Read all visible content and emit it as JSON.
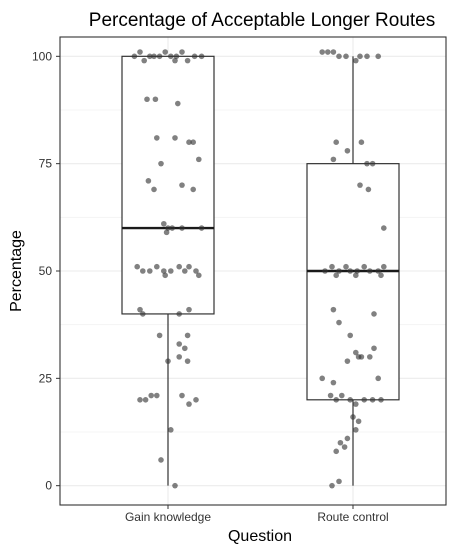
{
  "chart_data": {
    "type": "box",
    "title": "Percentage of Acceptable Longer Routes",
    "xlabel": "Question",
    "ylabel": "Percentage",
    "categories": [
      "Gain knowledge",
      "Route control"
    ],
    "ylim": [
      -4.5,
      104.5
    ],
    "yticks": [
      0,
      25,
      50,
      75,
      100
    ],
    "grid": true,
    "colors": {
      "point": "#333333",
      "box": "#333333",
      "grid": "#ebebeb",
      "panel_border": "#333333"
    },
    "boxes": [
      {
        "category": "Gain knowledge",
        "min": 0,
        "q1": 40,
        "median": 60,
        "q3": 100,
        "max": 100
      },
      {
        "category": "Route control",
        "min": 0,
        "q1": 20,
        "median": 50,
        "q3": 75,
        "max": 100
      }
    ],
    "points": {
      "Gain knowledge": [
        {
          "j": -0.24,
          "v": 100
        },
        {
          "j": -0.2,
          "v": 101
        },
        {
          "j": -0.17,
          "v": 99
        },
        {
          "j": -0.13,
          "v": 100
        },
        {
          "j": -0.1,
          "v": 100
        },
        {
          "j": -0.06,
          "v": 100
        },
        {
          "j": -0.02,
          "v": 101
        },
        {
          "j": 0.02,
          "v": 100
        },
        {
          "j": 0.06,
          "v": 100
        },
        {
          "j": 0.1,
          "v": 101
        },
        {
          "j": 0.14,
          "v": 99
        },
        {
          "j": 0.19,
          "v": 100
        },
        {
          "j": 0.24,
          "v": 100
        },
        {
          "j": 0.05,
          "v": 99
        },
        {
          "j": -0.15,
          "v": 90
        },
        {
          "j": -0.09,
          "v": 90
        },
        {
          "j": 0.07,
          "v": 89
        },
        {
          "j": 0.05,
          "v": 81
        },
        {
          "j": 0.18,
          "v": 80
        },
        {
          "j": 0.15,
          "v": 80
        },
        {
          "j": -0.08,
          "v": 81
        },
        {
          "j": 0.22,
          "v": 76
        },
        {
          "j": -0.05,
          "v": 75
        },
        {
          "j": -0.14,
          "v": 71
        },
        {
          "j": -0.1,
          "v": 69
        },
        {
          "j": 0.1,
          "v": 70
        },
        {
          "j": 0.18,
          "v": 69
        },
        {
          "j": -0.03,
          "v": 61
        },
        {
          "j": 0.0,
          "v": 60
        },
        {
          "j": 0.03,
          "v": 60
        },
        {
          "j": 0.1,
          "v": 60
        },
        {
          "j": 0.24,
          "v": 60
        },
        {
          "j": -0.01,
          "v": 59
        },
        {
          "j": -0.22,
          "v": 51
        },
        {
          "j": -0.18,
          "v": 50
        },
        {
          "j": -0.13,
          "v": 50
        },
        {
          "j": -0.08,
          "v": 51
        },
        {
          "j": -0.03,
          "v": 50
        },
        {
          "j": 0.02,
          "v": 50
        },
        {
          "j": 0.08,
          "v": 51
        },
        {
          "j": 0.12,
          "v": 50
        },
        {
          "j": 0.2,
          "v": 50
        },
        {
          "j": -0.02,
          "v": 49
        },
        {
          "j": 0.15,
          "v": 51
        },
        {
          "j": 0.22,
          "v": 49
        },
        {
          "j": -0.2,
          "v": 41
        },
        {
          "j": -0.18,
          "v": 40
        },
        {
          "j": 0.08,
          "v": 40
        },
        {
          "j": 0.15,
          "v": 41
        },
        {
          "j": -0.06,
          "v": 35
        },
        {
          "j": 0.14,
          "v": 35
        },
        {
          "j": 0.08,
          "v": 33
        },
        {
          "j": 0.12,
          "v": 32
        },
        {
          "j": 0.08,
          "v": 30
        },
        {
          "j": 0.14,
          "v": 29
        },
        {
          "j": 0.0,
          "v": 29
        },
        {
          "j": -0.12,
          "v": 21
        },
        {
          "j": -0.08,
          "v": 21
        },
        {
          "j": 0.1,
          "v": 21
        },
        {
          "j": -0.16,
          "v": 20
        },
        {
          "j": -0.2,
          "v": 20
        },
        {
          "j": 0.15,
          "v": 19
        },
        {
          "j": 0.2,
          "v": 20
        },
        {
          "j": 0.02,
          "v": 13
        },
        {
          "j": -0.05,
          "v": 6
        },
        {
          "j": 0.05,
          "v": 0
        }
      ],
      "Route control": [
        {
          "j": -0.22,
          "v": 101
        },
        {
          "j": -0.18,
          "v": 101
        },
        {
          "j": -0.14,
          "v": 101
        },
        {
          "j": -0.1,
          "v": 100
        },
        {
          "j": -0.05,
          "v": 100
        },
        {
          "j": 0.05,
          "v": 100
        },
        {
          "j": 0.1,
          "v": 100
        },
        {
          "j": 0.18,
          "v": 100
        },
        {
          "j": 0.02,
          "v": 99
        },
        {
          "j": -0.12,
          "v": 80
        },
        {
          "j": 0.06,
          "v": 80
        },
        {
          "j": -0.04,
          "v": 78
        },
        {
          "j": -0.14,
          "v": 76
        },
        {
          "j": 0.14,
          "v": 75
        },
        {
          "j": 0.1,
          "v": 75
        },
        {
          "j": 0.05,
          "v": 70
        },
        {
          "j": 0.11,
          "v": 69
        },
        {
          "j": 0.22,
          "v": 60
        },
        {
          "j": -0.2,
          "v": 50
        },
        {
          "j": -0.15,
          "v": 51
        },
        {
          "j": -0.1,
          "v": 50
        },
        {
          "j": -0.05,
          "v": 51
        },
        {
          "j": -0.02,
          "v": 50
        },
        {
          "j": 0.03,
          "v": 50
        },
        {
          "j": 0.08,
          "v": 51
        },
        {
          "j": 0.12,
          "v": 50
        },
        {
          "j": 0.18,
          "v": 50
        },
        {
          "j": 0.22,
          "v": 51
        },
        {
          "j": -0.12,
          "v": 49
        },
        {
          "j": 0.02,
          "v": 49
        },
        {
          "j": 0.2,
          "v": 49
        },
        {
          "j": -0.14,
          "v": 41
        },
        {
          "j": 0.15,
          "v": 40
        },
        {
          "j": -0.1,
          "v": 38
        },
        {
          "j": -0.02,
          "v": 35
        },
        {
          "j": 0.15,
          "v": 32
        },
        {
          "j": 0.02,
          "v": 31
        },
        {
          "j": 0.06,
          "v": 30
        },
        {
          "j": 0.12,
          "v": 30
        },
        {
          "j": -0.04,
          "v": 29
        },
        {
          "j": 0.04,
          "v": 30
        },
        {
          "j": -0.22,
          "v": 25
        },
        {
          "j": 0.18,
          "v": 25
        },
        {
          "j": -0.14,
          "v": 24
        },
        {
          "j": -0.16,
          "v": 21
        },
        {
          "j": -0.12,
          "v": 20
        },
        {
          "j": -0.08,
          "v": 21
        },
        {
          "j": -0.02,
          "v": 20
        },
        {
          "j": 0.02,
          "v": 19
        },
        {
          "j": 0.08,
          "v": 20
        },
        {
          "j": 0.14,
          "v": 20
        },
        {
          "j": 0.2,
          "v": 20
        },
        {
          "j": 0.0,
          "v": 16
        },
        {
          "j": 0.04,
          "v": 15
        },
        {
          "j": 0.02,
          "v": 13
        },
        {
          "j": -0.04,
          "v": 11
        },
        {
          "j": -0.09,
          "v": 10
        },
        {
          "j": -0.06,
          "v": 9
        },
        {
          "j": -0.12,
          "v": 8
        },
        {
          "j": -0.1,
          "v": 1
        },
        {
          "j": -0.15,
          "v": 0
        }
      ]
    }
  }
}
